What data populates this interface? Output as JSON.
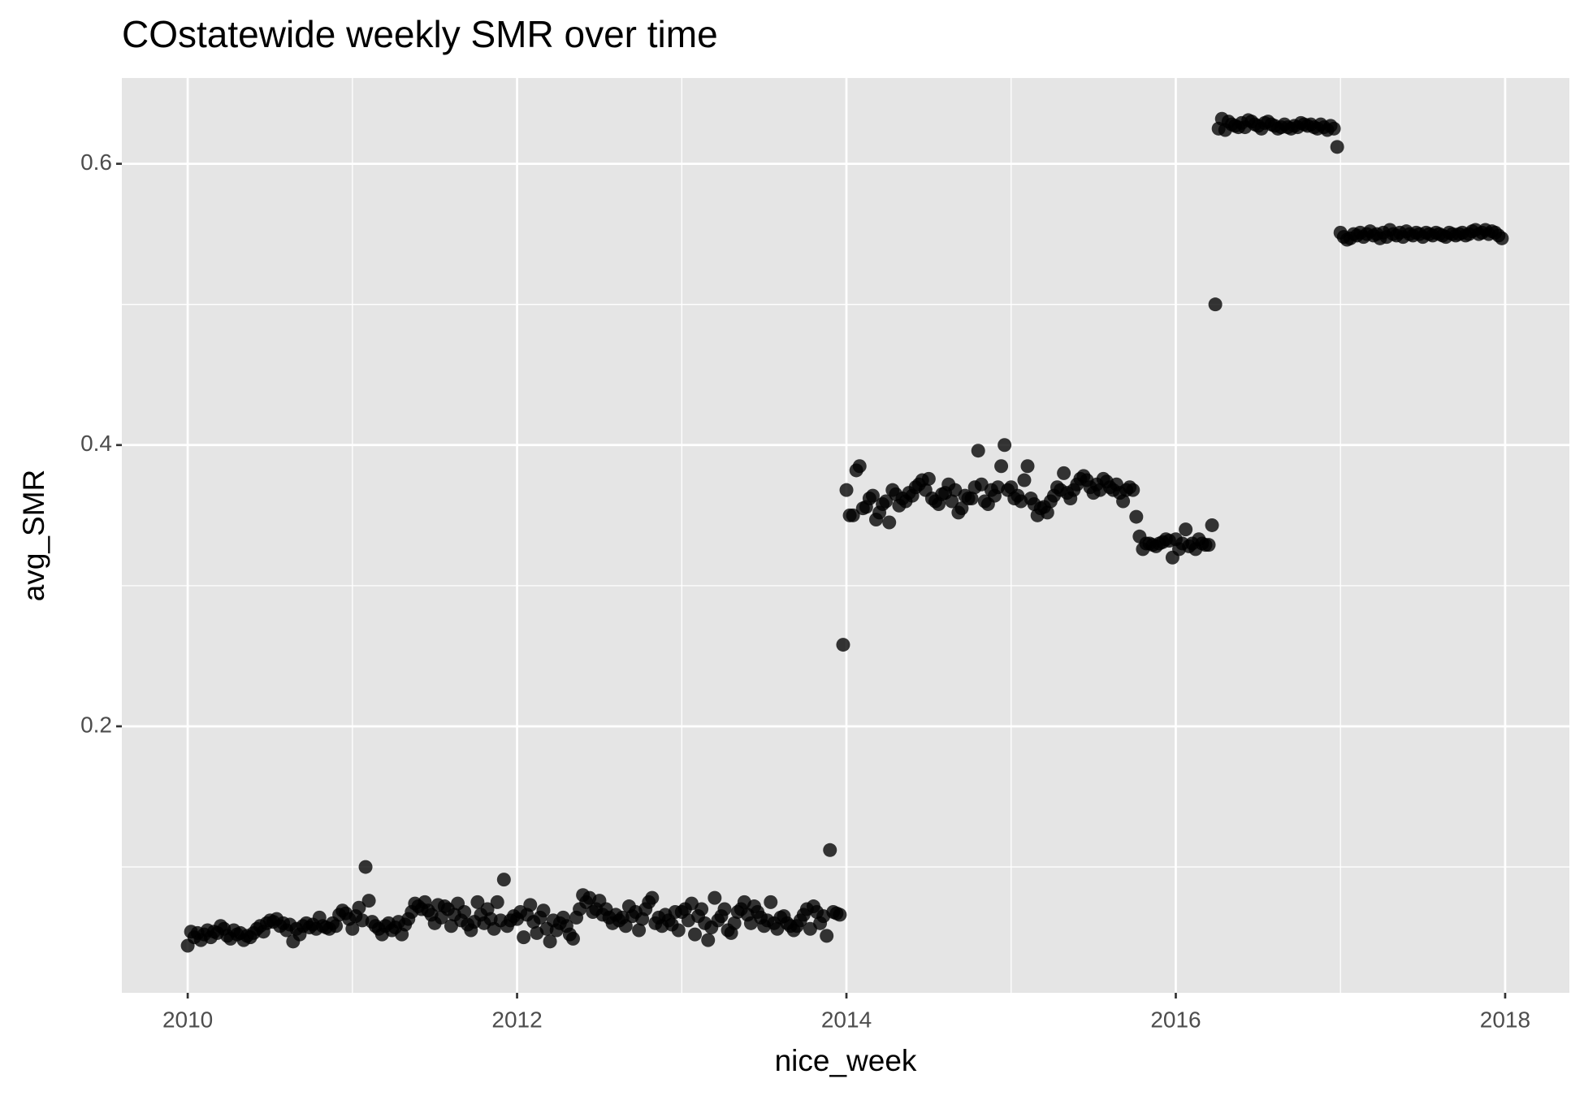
{
  "chart_data": {
    "type": "scatter",
    "title": "COstatewide weekly SMR over time",
    "x_label": "nice_week",
    "y_label": "avg_SMR",
    "xlim": [
      2009.6,
      2018.39
    ],
    "ylim": [
      0.0105,
      0.661
    ],
    "xticks": [
      2010,
      2012,
      2014,
      2016,
      2018
    ],
    "yticks": [
      0.2,
      0.4,
      0.6
    ],
    "xminor": [
      2011,
      2013,
      2015,
      2017
    ],
    "yminor": [
      0.1,
      0.3,
      0.5
    ],
    "grid": true,
    "panel_color": "#e5e5e5",
    "grid_color": "#ffffff",
    "series": [
      {
        "color": "#000000",
        "x": [
          2010,
          2010.02,
          2010.04,
          2010.06,
          2010.08,
          2010.1,
          2010.12,
          2010.14,
          2010.16,
          2010.18,
          2010.2,
          2010.22,
          2010.24,
          2010.26,
          2010.28,
          2010.3,
          2010.32,
          2010.34,
          2010.36,
          2010.38,
          2010.4,
          2010.42,
          2010.44,
          2010.46,
          2010.48,
          2010.5,
          2010.52,
          2010.54,
          2010.56,
          2010.58,
          2010.6,
          2010.62,
          2010.64,
          2010.66,
          2010.68,
          2010.7,
          2010.72,
          2010.74,
          2010.76,
          2010.78,
          2010.8,
          2010.82,
          2010.84,
          2010.86,
          2010.88,
          2010.9,
          2010.92,
          2010.94,
          2010.96,
          2010.98,
          2011,
          2011.02,
          2011.04,
          2011.06,
          2011.08,
          2011.1,
          2011.12,
          2011.14,
          2011.16,
          2011.18,
          2011.2,
          2011.22,
          2011.24,
          2011.26,
          2011.28,
          2011.3,
          2011.32,
          2011.34,
          2011.36,
          2011.38,
          2011.4,
          2011.42,
          2011.44,
          2011.46,
          2011.48,
          2011.5,
          2011.52,
          2011.54,
          2011.56,
          2011.58,
          2011.6,
          2011.62,
          2011.64,
          2011.66,
          2011.68,
          2011.7,
          2011.72,
          2011.74,
          2011.76,
          2011.78,
          2011.8,
          2011.82,
          2011.84,
          2011.86,
          2011.88,
          2011.9,
          2011.92,
          2011.94,
          2011.96,
          2011.98,
          2012,
          2012.02,
          2012.04,
          2012.06,
          2012.08,
          2012.1,
          2012.12,
          2012.14,
          2012.16,
          2012.18,
          2012.2,
          2012.22,
          2012.24,
          2012.26,
          2012.28,
          2012.3,
          2012.32,
          2012.34,
          2012.36,
          2012.38,
          2012.4,
          2012.42,
          2012.44,
          2012.46,
          2012.48,
          2012.5,
          2012.52,
          2012.54,
          2012.56,
          2012.58,
          2012.6,
          2012.62,
          2012.64,
          2012.66,
          2012.68,
          2012.7,
          2012.72,
          2012.74,
          2012.76,
          2012.78,
          2012.8,
          2012.82,
          2012.84,
          2012.86,
          2012.88,
          2012.9,
          2012.92,
          2012.94,
          2012.96,
          2012.98,
          2013,
          2013.02,
          2013.04,
          2013.06,
          2013.08,
          2013.1,
          2013.12,
          2013.14,
          2013.16,
          2013.18,
          2013.2,
          2013.22,
          2013.24,
          2013.26,
          2013.28,
          2013.3,
          2013.32,
          2013.34,
          2013.36,
          2013.38,
          2013.4,
          2013.42,
          2013.44,
          2013.46,
          2013.48,
          2013.5,
          2013.52,
          2013.54,
          2013.56,
          2013.58,
          2013.6,
          2013.62,
          2013.64,
          2013.66,
          2013.68,
          2013.7,
          2013.72,
          2013.74,
          2013.76,
          2013.78,
          2013.8,
          2013.82,
          2013.84,
          2013.86,
          2013.88,
          2013.9,
          2013.92,
          2013.94,
          2013.96,
          2013.98,
          2014,
          2014.02,
          2014.04,
          2014.06,
          2014.08,
          2014.1,
          2014.12,
          2014.14,
          2014.16,
          2014.18,
          2014.2,
          2014.22,
          2014.24,
          2014.26,
          2014.28,
          2014.3,
          2014.32,
          2014.34,
          2014.36,
          2014.38,
          2014.4,
          2014.42,
          2014.44,
          2014.46,
          2014.48,
          2014.5,
          2014.52,
          2014.54,
          2014.56,
          2014.58,
          2014.6,
          2014.62,
          2014.64,
          2014.66,
          2014.68,
          2014.7,
          2014.72,
          2014.74,
          2014.76,
          2014.78,
          2014.8,
          2014.82,
          2014.84,
          2014.86,
          2014.88,
          2014.9,
          2014.92,
          2014.94,
          2014.96,
          2014.98,
          2015,
          2015.02,
          2015.04,
          2015.06,
          2015.08,
          2015.1,
          2015.12,
          2015.14,
          2015.16,
          2015.18,
          2015.2,
          2015.22,
          2015.24,
          2015.26,
          2015.28,
          2015.3,
          2015.32,
          2015.34,
          2015.36,
          2015.38,
          2015.4,
          2015.42,
          2015.44,
          2015.46,
          2015.48,
          2015.5,
          2015.52,
          2015.54,
          2015.56,
          2015.58,
          2015.6,
          2015.62,
          2015.64,
          2015.66,
          2015.68,
          2015.7,
          2015.72,
          2015.74,
          2015.76,
          2015.78,
          2015.8,
          2015.82,
          2015.84,
          2015.86,
          2015.88,
          2015.9,
          2015.92,
          2015.94,
          2015.96,
          2015.98,
          2016,
          2016.02,
          2016.04,
          2016.06,
          2016.08,
          2016.1,
          2016.12,
          2016.14,
          2016.16,
          2016.18,
          2016.2,
          2016.22,
          2016.24,
          2016.26,
          2016.28,
          2016.3,
          2016.32,
          2016.34,
          2016.36,
          2016.38,
          2016.4,
          2016.42,
          2016.44,
          2016.46,
          2016.48,
          2016.5,
          2016.52,
          2016.54,
          2016.56,
          2016.58,
          2016.6,
          2016.62,
          2016.64,
          2016.66,
          2016.68,
          2016.7,
          2016.72,
          2016.74,
          2016.76,
          2016.78,
          2016.8,
          2016.82,
          2016.84,
          2016.86,
          2016.88,
          2016.9,
          2016.92,
          2016.94,
          2016.96,
          2016.98,
          2017,
          2017.02,
          2017.04,
          2017.06,
          2017.08,
          2017.1,
          2017.12,
          2017.14,
          2017.16,
          2017.18,
          2017.2,
          2017.22,
          2017.24,
          2017.26,
          2017.28,
          2017.3,
          2017.32,
          2017.34,
          2017.36,
          2017.38,
          2017.4,
          2017.42,
          2017.44,
          2017.46,
          2017.48,
          2017.5,
          2017.52,
          2017.54,
          2017.56,
          2017.58,
          2017.6,
          2017.62,
          2017.64,
          2017.66,
          2017.68,
          2017.7,
          2017.72,
          2017.74,
          2017.76,
          2017.78,
          2017.8,
          2017.82,
          2017.84,
          2017.86,
          2017.88,
          2017.9,
          2017.92,
          2017.94,
          2017.96,
          2017.98
        ],
        "values": [
          0.044,
          0.054,
          0.05,
          0.053,
          0.048,
          0.052,
          0.055,
          0.05,
          0.054,
          0.053,
          0.058,
          0.056,
          0.051,
          0.049,
          0.055,
          0.052,
          0.053,
          0.048,
          0.051,
          0.05,
          0.053,
          0.056,
          0.058,
          0.054,
          0.06,
          0.062,
          0.061,
          0.063,
          0.058,
          0.06,
          0.055,
          0.059,
          0.047,
          0.056,
          0.052,
          0.058,
          0.06,
          0.057,
          0.059,
          0.056,
          0.064,
          0.058,
          0.057,
          0.056,
          0.06,
          0.058,
          0.066,
          0.069,
          0.067,
          0.063,
          0.056,
          0.065,
          0.071,
          0.062,
          0.1,
          0.076,
          0.061,
          0.058,
          0.056,
          0.052,
          0.058,
          0.06,
          0.055,
          0.057,
          0.061,
          0.052,
          0.059,
          0.063,
          0.068,
          0.074,
          0.072,
          0.07,
          0.075,
          0.069,
          0.066,
          0.06,
          0.073,
          0.064,
          0.072,
          0.07,
          0.058,
          0.066,
          0.074,
          0.062,
          0.068,
          0.059,
          0.055,
          0.061,
          0.075,
          0.066,
          0.06,
          0.07,
          0.063,
          0.056,
          0.075,
          0.062,
          0.091,
          0.058,
          0.062,
          0.065,
          0.063,
          0.068,
          0.05,
          0.066,
          0.073,
          0.061,
          0.053,
          0.064,
          0.069,
          0.056,
          0.047,
          0.062,
          0.055,
          0.06,
          0.064,
          0.058,
          0.052,
          0.049,
          0.064,
          0.07,
          0.08,
          0.075,
          0.078,
          0.068,
          0.07,
          0.076,
          0.066,
          0.07,
          0.064,
          0.06,
          0.066,
          0.062,
          0.064,
          0.058,
          0.072,
          0.065,
          0.068,
          0.055,
          0.063,
          0.07,
          0.075,
          0.078,
          0.06,
          0.064,
          0.058,
          0.066,
          0.062,
          0.059,
          0.068,
          0.055,
          0.068,
          0.07,
          0.062,
          0.074,
          0.052,
          0.065,
          0.07,
          0.06,
          0.048,
          0.057,
          0.078,
          0.062,
          0.065,
          0.07,
          0.055,
          0.053,
          0.06,
          0.068,
          0.07,
          0.075,
          0.066,
          0.06,
          0.072,
          0.068,
          0.064,
          0.058,
          0.062,
          0.075,
          0.06,
          0.056,
          0.064,
          0.065,
          0.06,
          0.058,
          0.055,
          0.058,
          0.062,
          0.066,
          0.07,
          0.056,
          0.072,
          0.068,
          0.06,
          0.065,
          0.051,
          0.112,
          0.068,
          0.067,
          0.066,
          0.258,
          0.368,
          0.35,
          0.35,
          0.382,
          0.385,
          0.355,
          0.356,
          0.362,
          0.364,
          0.347,
          0.352,
          0.358,
          0.36,
          0.345,
          0.368,
          0.365,
          0.357,
          0.362,
          0.36,
          0.366,
          0.364,
          0.37,
          0.372,
          0.375,
          0.368,
          0.376,
          0.362,
          0.36,
          0.358,
          0.365,
          0.366,
          0.372,
          0.36,
          0.368,
          0.352,
          0.355,
          0.364,
          0.362,
          0.362,
          0.37,
          0.396,
          0.372,
          0.36,
          0.358,
          0.368,
          0.364,
          0.37,
          0.385,
          0.4,
          0.368,
          0.37,
          0.362,
          0.364,
          0.36,
          0.375,
          0.385,
          0.362,
          0.358,
          0.35,
          0.355,
          0.356,
          0.352,
          0.36,
          0.364,
          0.37,
          0.368,
          0.38,
          0.366,
          0.362,
          0.368,
          0.372,
          0.376,
          0.378,
          0.375,
          0.37,
          0.366,
          0.372,
          0.368,
          0.376,
          0.374,
          0.37,
          0.368,
          0.372,
          0.366,
          0.36,
          0.368,
          0.37,
          0.368,
          0.349,
          0.335,
          0.326,
          0.33,
          0.33,
          0.329,
          0.328,
          0.33,
          0.331,
          0.333,
          0.332,
          0.32,
          0.333,
          0.326,
          0.33,
          0.34,
          0.328,
          0.33,
          0.326,
          0.333,
          0.33,
          0.329,
          0.329,
          0.343,
          0.5,
          0.625,
          0.632,
          0.624,
          0.63,
          0.628,
          0.627,
          0.626,
          0.629,
          0.626,
          0.631,
          0.63,
          0.628,
          0.627,
          0.625,
          0.629,
          0.63,
          0.628,
          0.627,
          0.625,
          0.626,
          0.628,
          0.626,
          0.625,
          0.627,
          0.626,
          0.629,
          0.628,
          0.627,
          0.628,
          0.626,
          0.625,
          0.628,
          0.626,
          0.624,
          0.627,
          0.625,
          0.612,
          0.551,
          0.548,
          0.546,
          0.547,
          0.55,
          0.549,
          0.551,
          0.548,
          0.55,
          0.552,
          0.549,
          0.55,
          0.547,
          0.551,
          0.548,
          0.553,
          0.55,
          0.549,
          0.551,
          0.548,
          0.552,
          0.55,
          0.549,
          0.551,
          0.55,
          0.548,
          0.551,
          0.55,
          0.549,
          0.551,
          0.55,
          0.549,
          0.548,
          0.551,
          0.55,
          0.549,
          0.55,
          0.551,
          0.549,
          0.55,
          0.552,
          0.553,
          0.55,
          0.551,
          0.553,
          0.55,
          0.552,
          0.551,
          0.549,
          0.547
        ]
      }
    ]
  }
}
